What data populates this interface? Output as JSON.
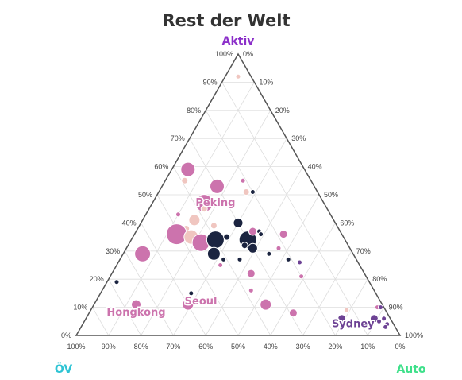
{
  "chart_data": {
    "type": "scatter",
    "subtype": "ternary",
    "title": "Rest der Welt",
    "axes": {
      "top": {
        "label": "Aktiv",
        "color": "#8b2fc9"
      },
      "left": {
        "label": "ÖV",
        "color": "#2fc4d4"
      },
      "right": {
        "label": "Auto",
        "color": "#3ee08a"
      }
    },
    "ticks": [
      "0%",
      "10%",
      "20%",
      "30%",
      "40%",
      "50%",
      "60%",
      "70%",
      "80%",
      "90%",
      "100%"
    ],
    "grid": true,
    "colors": {
      "navy": "#1b2440",
      "pink": "#cc73ad",
      "lightpink": "#f0c6c0",
      "purple": "#6d4294",
      "frame": "#555555",
      "grid": "#dddddd"
    },
    "city_labels": [
      {
        "name": "Peking",
        "a": 0.46,
        "b": 0.34,
        "c": 0.2,
        "color": "#cc73ad"
      },
      {
        "name": "Hongkong",
        "a": 0.07,
        "b": 0.78,
        "c": 0.15,
        "color": "#cc73ad"
      },
      {
        "name": "Seoul",
        "a": 0.11,
        "b": 0.56,
        "c": 0.33,
        "color": "#cc73ad"
      },
      {
        "name": "Sydney",
        "a": 0.03,
        "b": 0.13,
        "c": 0.84,
        "color": "#6d4294"
      }
    ],
    "points": [
      {
        "a": 0.92,
        "b": 0.04,
        "c": 0.04,
        "r": 3,
        "color": "lightpink"
      },
      {
        "a": 0.59,
        "b": 0.36,
        "c": 0.05,
        "r": 9,
        "color": "pink"
      },
      {
        "a": 0.55,
        "b": 0.39,
        "c": 0.06,
        "r": 4,
        "color": "lightpink"
      },
      {
        "a": 0.53,
        "b": 0.3,
        "c": 0.17,
        "r": 9,
        "color": "pink"
      },
      {
        "a": 0.55,
        "b": 0.21,
        "c": 0.24,
        "r": 3,
        "color": "pink"
      },
      {
        "a": 0.51,
        "b": 0.2,
        "c": 0.29,
        "r": 3,
        "color": "navy"
      },
      {
        "a": 0.51,
        "b": 0.22,
        "c": 0.27,
        "r": 4,
        "color": "lightpink"
      },
      {
        "a": 0.47,
        "b": 0.37,
        "c": 0.16,
        "r": 11,
        "color": "pink"
      },
      {
        "a": 0.45,
        "b": 0.38,
        "c": 0.17,
        "r": 4,
        "color": "lightpink"
      },
      {
        "a": 0.43,
        "b": 0.47,
        "c": 0.1,
        "r": 3,
        "color": "pink"
      },
      {
        "a": 0.41,
        "b": 0.43,
        "c": 0.16,
        "r": 7,
        "color": "lightpink"
      },
      {
        "a": 0.39,
        "b": 0.38,
        "c": 0.23,
        "r": 4,
        "color": "lightpink"
      },
      {
        "a": 0.4,
        "b": 0.3,
        "c": 0.3,
        "r": 6,
        "color": "navy"
      },
      {
        "a": 0.38,
        "b": 0.47,
        "c": 0.15,
        "r": 4,
        "color": "lightpink"
      },
      {
        "a": 0.36,
        "b": 0.51,
        "c": 0.13,
        "r": 13,
        "color": "pink"
      },
      {
        "a": 0.35,
        "b": 0.47,
        "c": 0.18,
        "r": 9,
        "color": "lightpink"
      },
      {
        "a": 0.33,
        "b": 0.45,
        "c": 0.22,
        "r": 11,
        "color": "pink"
      },
      {
        "a": 0.34,
        "b": 0.4,
        "c": 0.26,
        "r": 11,
        "color": "navy"
      },
      {
        "a": 0.35,
        "b": 0.36,
        "c": 0.29,
        "r": 4,
        "color": "navy"
      },
      {
        "a": 0.34,
        "b": 0.3,
        "c": 0.36,
        "r": 11,
        "color": "navy"
      },
      {
        "a": 0.37,
        "b": 0.27,
        "c": 0.36,
        "r": 5,
        "color": "pink"
      },
      {
        "a": 0.37,
        "b": 0.25,
        "c": 0.38,
        "r": 3,
        "color": "navy"
      },
      {
        "a": 0.36,
        "b": 0.25,
        "c": 0.39,
        "r": 3,
        "color": "navy"
      },
      {
        "a": 0.36,
        "b": 0.18,
        "c": 0.46,
        "r": 5,
        "color": "pink"
      },
      {
        "a": 0.32,
        "b": 0.32,
        "c": 0.36,
        "r": 4,
        "color": "navy"
      },
      {
        "a": 0.31,
        "b": 0.3,
        "c": 0.39,
        "r": 6,
        "color": "navy"
      },
      {
        "a": 0.31,
        "b": 0.22,
        "c": 0.47,
        "r": 3,
        "color": "pink"
      },
      {
        "a": 0.29,
        "b": 0.43,
        "c": 0.28,
        "r": 8,
        "color": "navy"
      },
      {
        "a": 0.29,
        "b": 0.65,
        "c": 0.06,
        "r": 10,
        "color": "pink"
      },
      {
        "a": 0.29,
        "b": 0.26,
        "c": 0.45,
        "r": 3,
        "color": "navy"
      },
      {
        "a": 0.27,
        "b": 0.41,
        "c": 0.32,
        "r": 3,
        "color": "navy"
      },
      {
        "a": 0.27,
        "b": 0.36,
        "c": 0.37,
        "r": 3,
        "color": "navy"
      },
      {
        "a": 0.27,
        "b": 0.21,
        "c": 0.52,
        "r": 3,
        "color": "navy"
      },
      {
        "a": 0.26,
        "b": 0.18,
        "c": 0.56,
        "r": 3,
        "color": "purple"
      },
      {
        "a": 0.25,
        "b": 0.43,
        "c": 0.32,
        "r": 3,
        "color": "pink"
      },
      {
        "a": 0.22,
        "b": 0.35,
        "c": 0.43,
        "r": 5,
        "color": "pink"
      },
      {
        "a": 0.21,
        "b": 0.2,
        "c": 0.59,
        "r": 3,
        "color": "pink"
      },
      {
        "a": 0.19,
        "b": 0.78,
        "c": 0.03,
        "r": 3,
        "color": "navy"
      },
      {
        "a": 0.15,
        "b": 0.57,
        "c": 0.28,
        "r": 3,
        "color": "navy"
      },
      {
        "a": 0.16,
        "b": 0.38,
        "c": 0.46,
        "r": 3,
        "color": "pink"
      },
      {
        "a": 0.11,
        "b": 0.76,
        "c": 0.13,
        "r": 6,
        "color": "pink"
      },
      {
        "a": 0.11,
        "b": 0.6,
        "c": 0.29,
        "r": 7,
        "color": "pink"
      },
      {
        "a": 0.11,
        "b": 0.36,
        "c": 0.53,
        "r": 7,
        "color": "pink"
      },
      {
        "a": 0.08,
        "b": 0.29,
        "c": 0.63,
        "r": 5,
        "color": "pink"
      },
      {
        "a": 0.09,
        "b": 0.12,
        "c": 0.79,
        "r": 3,
        "color": "lightpink"
      },
      {
        "a": 0.1,
        "b": 0.02,
        "c": 0.88,
        "r": 3,
        "color": "pink"
      },
      {
        "a": 0.1,
        "b": 0.01,
        "c": 0.89,
        "r": 3,
        "color": "purple"
      },
      {
        "a": 0.06,
        "b": 0.15,
        "c": 0.79,
        "r": 5,
        "color": "purple"
      },
      {
        "a": 0.06,
        "b": 0.05,
        "c": 0.89,
        "r": 5,
        "color": "purple"
      },
      {
        "a": 0.06,
        "b": 0.02,
        "c": 0.92,
        "r": 3,
        "color": "purple"
      },
      {
        "a": 0.05,
        "b": 0.04,
        "c": 0.91,
        "r": 3,
        "color": "purple"
      },
      {
        "a": 0.04,
        "b": 0.02,
        "c": 0.94,
        "r": 3,
        "color": "purple"
      },
      {
        "a": 0.03,
        "b": 0.03,
        "c": 0.94,
        "r": 3,
        "color": "purple"
      }
    ]
  }
}
